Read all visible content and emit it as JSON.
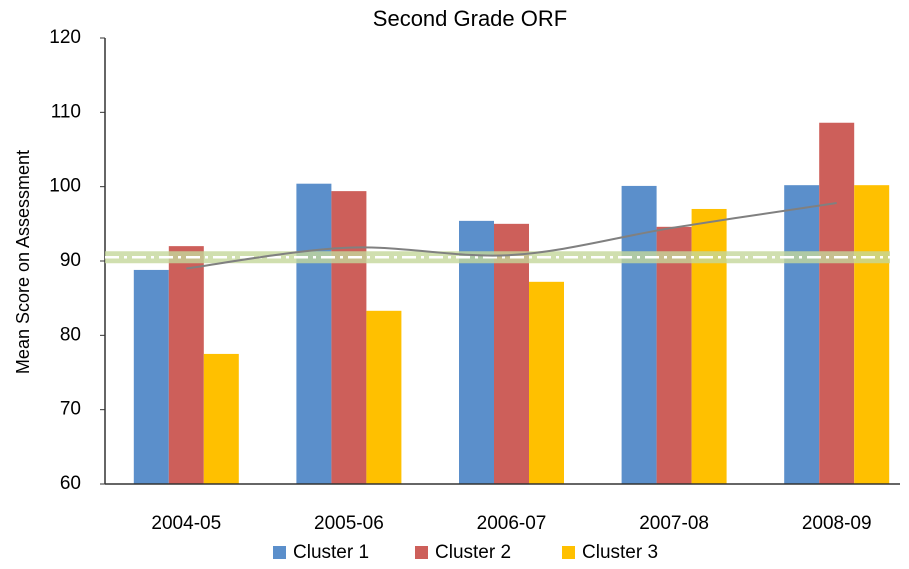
{
  "chart_data": {
    "type": "bar",
    "title": "Second Grade ORF",
    "y_label": "Mean Score on Assessment",
    "categories": [
      "2004-05",
      "2005-06",
      "2006-07",
      "2007-08",
      "2008-09"
    ],
    "series": [
      {
        "name": "Cluster 1",
        "color": "#5b8fcb",
        "values": [
          88.8,
          100.4,
          95.4,
          100.1,
          100.2
        ]
      },
      {
        "name": "Cluster 2",
        "color": "#cd5f5a",
        "values": [
          92,
          99.4,
          95,
          94.6,
          108.6
        ]
      },
      {
        "name": "Cluster 3",
        "color": "#ffc000",
        "values": [
          77.5,
          83.3,
          87.2,
          97,
          100.2
        ]
      }
    ],
    "trend_line": {
      "color": "#808080",
      "values": [
        89,
        91.8,
        90.8,
        94.5,
        97.8
      ]
    },
    "reference_line": {
      "color": "#c4d79b",
      "value": 90.5
    },
    "ylim": [
      60,
      120
    ],
    "yticks": [
      60,
      70,
      80,
      90,
      100,
      110,
      120
    ],
    "grid": false,
    "legend": "bottom"
  }
}
